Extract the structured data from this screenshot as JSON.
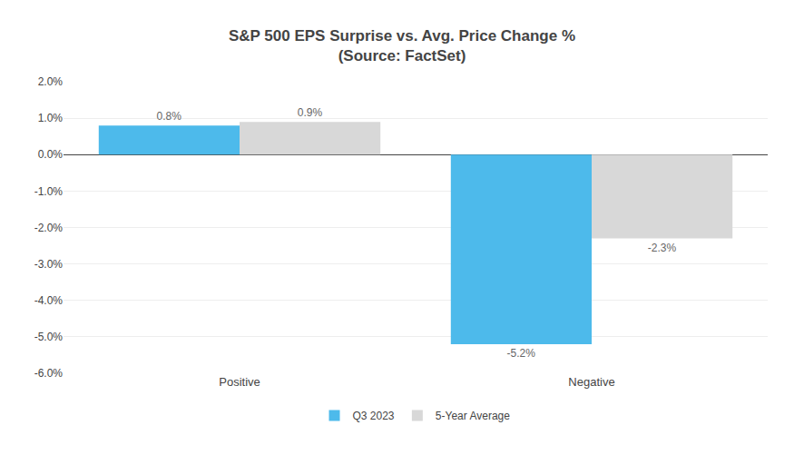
{
  "chart_data": {
    "type": "bar",
    "title": "S&P 500 EPS Surprise vs. Avg. Price Change %",
    "subtitle": "(Source: FactSet)",
    "categories": [
      "Positive",
      "Negative"
    ],
    "series": [
      {
        "name": "Q3 2023",
        "color": "#4DBAEB",
        "values": [
          0.8,
          -5.2
        ],
        "value_labels": [
          "0.8%",
          "-5.2%"
        ]
      },
      {
        "name": "5-Year Average",
        "color": "#D8D8D8",
        "values": [
          0.9,
          -2.3
        ],
        "value_labels": [
          "0.9%",
          "-2.3%"
        ]
      }
    ],
    "ylim": [
      -6.0,
      2.0
    ],
    "yticks": [
      {
        "value": -6.0,
        "label": "-6.0%"
      },
      {
        "value": -5.0,
        "label": "-5.0%"
      },
      {
        "value": -4.0,
        "label": "-4.0%"
      },
      {
        "value": -3.0,
        "label": "-3.0%"
      },
      {
        "value": -2.0,
        "label": "-2.0%"
      },
      {
        "value": -1.0,
        "label": "-1.0%"
      },
      {
        "value": 0.0,
        "label": "0.0%"
      },
      {
        "value": 1.0,
        "label": "1.0%"
      },
      {
        "value": 2.0,
        "label": "2.0%"
      }
    ],
    "grid": true,
    "legend": "bottom",
    "data_labels": true
  }
}
